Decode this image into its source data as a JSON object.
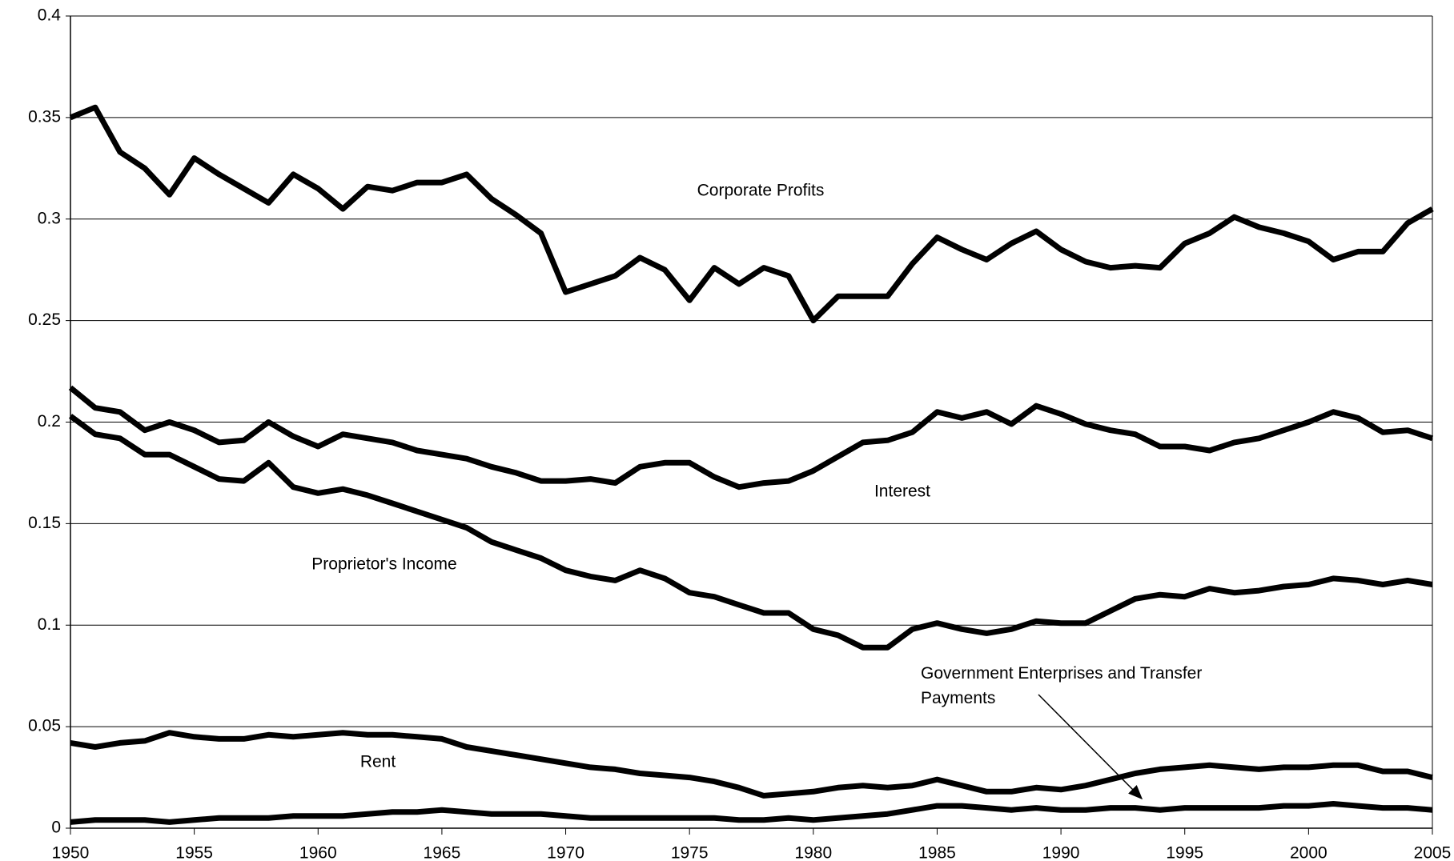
{
  "chart_data": {
    "type": "line",
    "x": [
      1950,
      1951,
      1952,
      1953,
      1954,
      1955,
      1956,
      1957,
      1958,
      1959,
      1960,
      1961,
      1962,
      1963,
      1964,
      1965,
      1966,
      1967,
      1968,
      1969,
      1970,
      1971,
      1972,
      1973,
      1974,
      1975,
      1976,
      1977,
      1978,
      1979,
      1980,
      1981,
      1982,
      1983,
      1984,
      1985,
      1986,
      1987,
      1988,
      1989,
      1990,
      1991,
      1992,
      1993,
      1994,
      1995,
      1996,
      1997,
      1998,
      1999,
      2000,
      2001,
      2002,
      2003,
      2004,
      2005
    ],
    "xlim": [
      1950,
      2005
    ],
    "xticks": [
      1950,
      1955,
      1960,
      1965,
      1970,
      1975,
      1980,
      1985,
      1990,
      1995,
      2000,
      2005
    ],
    "ylim": [
      0,
      0.4
    ],
    "yticks": [
      0,
      0.05,
      0.1,
      0.15,
      0.2,
      0.25,
      0.3,
      0.35,
      0.4
    ],
    "grid": true,
    "series": [
      {
        "name": "Corporate Profits",
        "color": "#000000",
        "values": [
          0.35,
          0.355,
          0.333,
          0.325,
          0.312,
          0.33,
          0.322,
          0.315,
          0.308,
          0.322,
          0.315,
          0.305,
          0.316,
          0.314,
          0.318,
          0.318,
          0.322,
          0.31,
          0.302,
          0.293,
          0.264,
          0.268,
          0.272,
          0.281,
          0.275,
          0.26,
          0.276,
          0.268,
          0.276,
          0.272,
          0.25,
          0.262,
          0.262,
          0.262,
          0.278,
          0.291,
          0.285,
          0.28,
          0.288,
          0.294,
          0.285,
          0.279,
          0.276,
          0.277,
          0.276,
          0.288,
          0.293,
          0.301,
          0.296,
          0.293,
          0.289,
          0.28,
          0.284,
          0.284,
          0.298,
          0.305
        ]
      },
      {
        "name": "Interest",
        "color": "#000000",
        "values": [
          0.217,
          0.207,
          0.205,
          0.196,
          0.2,
          0.196,
          0.19,
          0.191,
          0.2,
          0.193,
          0.188,
          0.194,
          0.192,
          0.19,
          0.186,
          0.184,
          0.182,
          0.178,
          0.175,
          0.171,
          0.171,
          0.172,
          0.17,
          0.178,
          0.18,
          0.18,
          0.173,
          0.168,
          0.17,
          0.171,
          0.176,
          0.183,
          0.19,
          0.191,
          0.195,
          0.205,
          0.202,
          0.205,
          0.199,
          0.208,
          0.204,
          0.199,
          0.196,
          0.194,
          0.188,
          0.188,
          0.186,
          0.19,
          0.192,
          0.196,
          0.2,
          0.205,
          0.202,
          0.195,
          0.196,
          0.192
        ]
      },
      {
        "name": "Proprietor's Income",
        "color": "#000000",
        "values": [
          0.203,
          0.194,
          0.192,
          0.184,
          0.184,
          0.178,
          0.172,
          0.171,
          0.18,
          0.168,
          0.165,
          0.167,
          0.164,
          0.16,
          0.156,
          0.152,
          0.148,
          0.141,
          0.137,
          0.133,
          0.127,
          0.124,
          0.122,
          0.127,
          0.123,
          0.116,
          0.114,
          0.11,
          0.106,
          0.106,
          0.098,
          0.095,
          0.089,
          0.089,
          0.098,
          0.101,
          0.098,
          0.096,
          0.098,
          0.102,
          0.101,
          0.101,
          0.107,
          0.113,
          0.115,
          0.114,
          0.118,
          0.116,
          0.117,
          0.119,
          0.12,
          0.123,
          0.122,
          0.12,
          0.122,
          0.12
        ]
      },
      {
        "name": "Rent",
        "color": "#000000",
        "values": [
          0.042,
          0.04,
          0.042,
          0.043,
          0.047,
          0.045,
          0.044,
          0.044,
          0.046,
          0.045,
          0.046,
          0.047,
          0.046,
          0.046,
          0.045,
          0.044,
          0.04,
          0.038,
          0.036,
          0.034,
          0.032,
          0.03,
          0.029,
          0.027,
          0.026,
          0.025,
          0.023,
          0.02,
          0.016,
          0.017,
          0.018,
          0.02,
          0.021,
          0.02,
          0.021,
          0.024,
          0.021,
          0.018,
          0.018,
          0.02,
          0.019,
          0.021,
          0.024,
          0.027,
          0.029,
          0.03,
          0.031,
          0.03,
          0.029,
          0.03,
          0.03,
          0.031,
          0.031,
          0.028,
          0.028,
          0.025
        ]
      },
      {
        "name": "Government Enterprises and Transfer Payments",
        "color": "#000000",
        "values": [
          0.003,
          0.004,
          0.004,
          0.004,
          0.003,
          0.004,
          0.005,
          0.005,
          0.005,
          0.006,
          0.006,
          0.006,
          0.007,
          0.008,
          0.008,
          0.009,
          0.008,
          0.007,
          0.007,
          0.007,
          0.006,
          0.005,
          0.005,
          0.005,
          0.005,
          0.005,
          0.005,
          0.004,
          0.004,
          0.005,
          0.004,
          0.005,
          0.006,
          0.007,
          0.009,
          0.011,
          0.011,
          0.01,
          0.009,
          0.01,
          0.009,
          0.009,
          0.01,
          0.01,
          0.009,
          0.01,
          0.01,
          0.01,
          0.01,
          0.011,
          0.011,
          0.012,
          0.011,
          0.01,
          0.01,
          0.009
        ]
      }
    ]
  }
}
